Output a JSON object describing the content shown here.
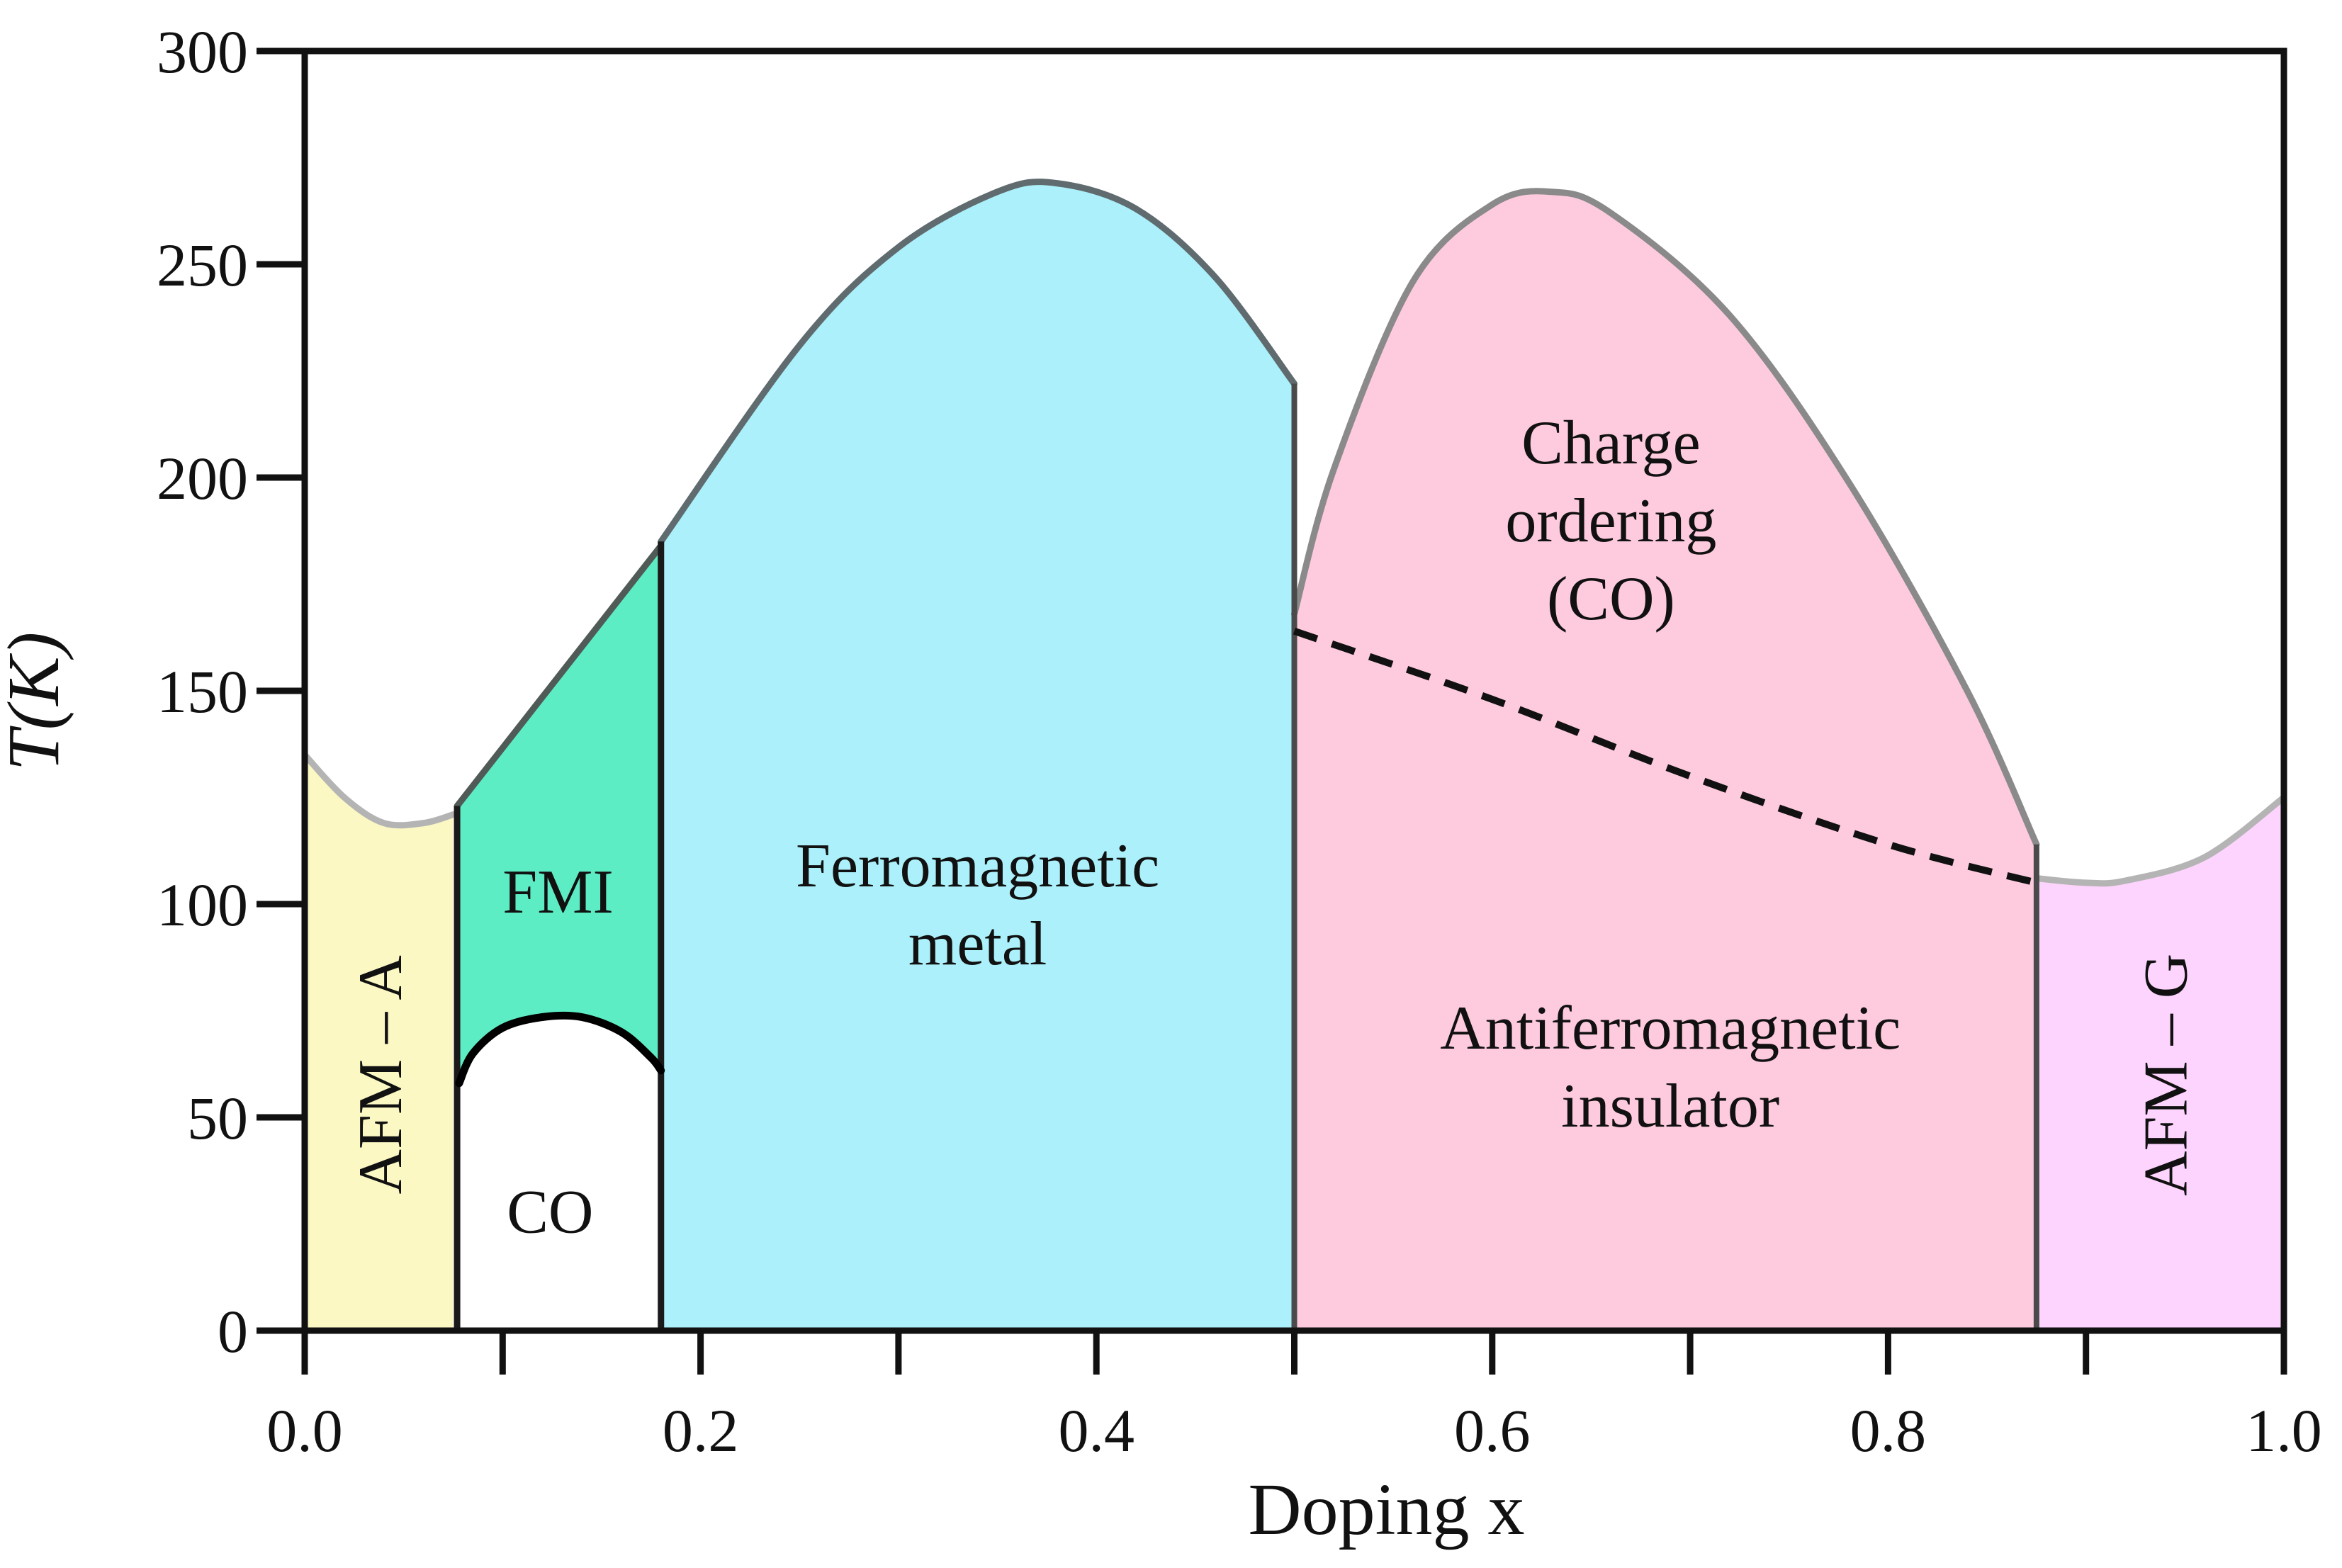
{
  "chart_data": {
    "type": "phase-diagram",
    "title": "",
    "xlabel": "Doping x",
    "ylabel": "T(K)",
    "xlim": [
      0.0,
      1.0
    ],
    "ylim": [
      0,
      300
    ],
    "x_ticks": [
      0.0,
      0.2,
      0.4,
      0.6,
      0.8,
      1.0
    ],
    "x_tick_labels": [
      "0.0",
      "0.2",
      "0.4",
      "0.6",
      "0.8",
      "1.0"
    ],
    "x_minor_ticks": [
      0.1,
      0.3,
      0.5,
      0.7,
      0.9
    ],
    "y_ticks": [
      0,
      50,
      100,
      150,
      200,
      250,
      300
    ],
    "y_tick_labels": [
      "0",
      "50",
      "100",
      "150",
      "200",
      "250",
      "300"
    ],
    "grid": false,
    "regions": [
      {
        "id": "afm-a",
        "label": [
          "AFM – A"
        ],
        "rotated": true,
        "color": "#FBF8C4",
        "label_at": [
          0.038,
          60
        ],
        "top_boundary": [
          [
            0.0,
            135
          ],
          [
            0.02,
            125
          ],
          [
            0.04,
            119
          ],
          [
            0.06,
            119
          ],
          [
            0.075,
            121
          ]
        ],
        "x_range": [
          0.0,
          0.075
        ]
      },
      {
        "id": "fmi",
        "label": [
          "FMI"
        ],
        "rotated": false,
        "color": "#5DEDC4",
        "label_at": [
          0.128,
          103
        ],
        "top_boundary": [
          [
            0.077,
            123
          ],
          [
            0.18,
            184
          ]
        ],
        "x_range": [
          0.077,
          0.18
        ]
      },
      {
        "id": "co-low",
        "label": [
          "CO"
        ],
        "rotated": false,
        "color": "#FFFFFF",
        "label_at": [
          0.124,
          28
        ],
        "top_boundary": [
          [
            0.078,
            58
          ],
          [
            0.085,
            65
          ],
          [
            0.1,
            71
          ],
          [
            0.12,
            73.5
          ],
          [
            0.14,
            73.5
          ],
          [
            0.16,
            70
          ],
          [
            0.175,
            64
          ],
          [
            0.18,
            61
          ]
        ],
        "x_range": [
          0.078,
          0.18
        ]
      },
      {
        "id": "fm-metal",
        "label": [
          "Ferromagnetic",
          "metal"
        ],
        "rotated": false,
        "color": "#ABF0FA",
        "label_at": [
          0.34,
          100
        ],
        "top_boundary": [
          [
            0.18,
            185
          ],
          [
            0.25,
            231
          ],
          [
            0.3,
            254
          ],
          [
            0.35,
            267
          ],
          [
            0.38,
            269
          ],
          [
            0.42,
            263
          ],
          [
            0.46,
            247
          ],
          [
            0.5,
            222
          ]
        ],
        "x_range": [
          0.18,
          0.5
        ]
      },
      {
        "id": "charge-ordering",
        "label": [
          "Charge",
          "ordering",
          "(CO)"
        ],
        "rotated": false,
        "color": "#FECBDE",
        "label_at": [
          0.66,
          190
        ],
        "top_boundary": [
          [
            0.5,
            168
          ],
          [
            0.52,
            202
          ],
          [
            0.56,
            246
          ],
          [
            0.6,
            264
          ],
          [
            0.63,
            267
          ],
          [
            0.66,
            262
          ],
          [
            0.72,
            238
          ],
          [
            0.78,
            199
          ],
          [
            0.84,
            150
          ],
          [
            0.875,
            114
          ]
        ],
        "x_range": [
          0.5,
          0.875
        ]
      },
      {
        "id": "afm-insulator",
        "label": [
          "Antiferromagnetic",
          "insulator"
        ],
        "rotated": false,
        "color": "#FECBDE",
        "label_at": [
          0.69,
          62
        ],
        "top_boundary": [
          [
            0.5,
            164
          ],
          [
            0.875,
            105
          ]
        ],
        "x_range": [
          0.5,
          0.875
        ]
      },
      {
        "id": "afm-g",
        "label": [
          "AFM – G"
        ],
        "rotated": true,
        "color": "#FDD4FD",
        "label_at": [
          0.94,
          60
        ],
        "top_boundary": [
          [
            0.876,
            106
          ],
          [
            0.9,
            105
          ],
          [
            0.92,
            105.5
          ],
          [
            0.96,
            111
          ],
          [
            1.0,
            125
          ]
        ],
        "x_range": [
          0.876,
          1.0
        ]
      }
    ],
    "dashed_boundary": [
      [
        0.5,
        164
      ],
      [
        0.6,
        148
      ],
      [
        0.7,
        130
      ],
      [
        0.8,
        114
      ],
      [
        0.875,
        105
      ]
    ]
  }
}
